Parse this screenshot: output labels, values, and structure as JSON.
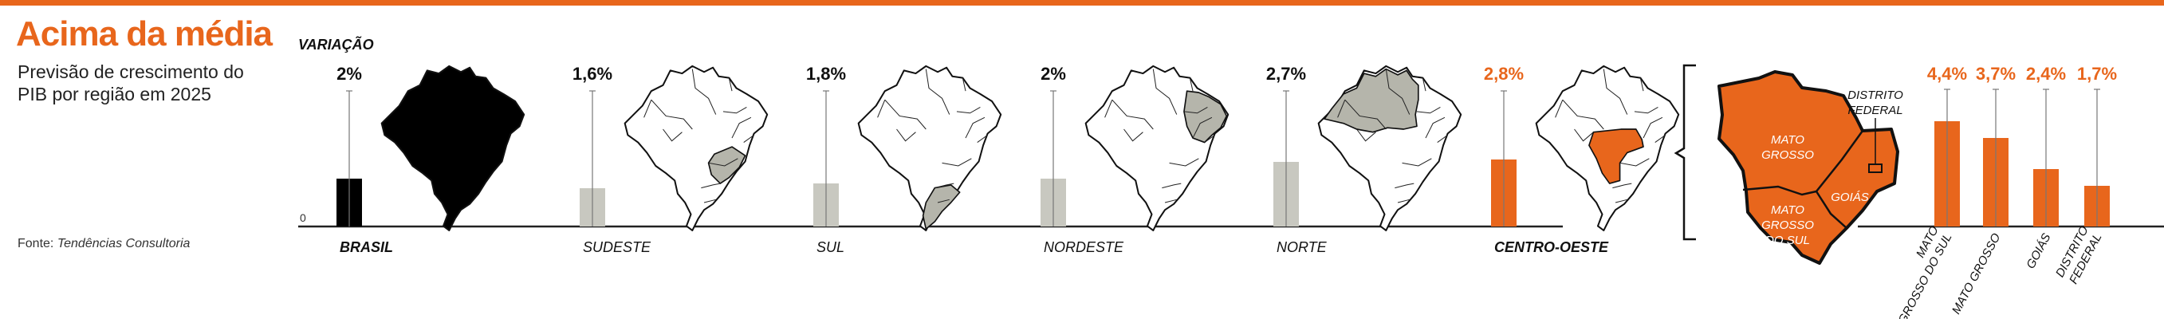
{
  "header": {
    "title": "Acima da média",
    "subtitle": "Previsão de crescimento do PIB por região em 2025",
    "source_prefix": "Fonte: ",
    "source_name": "Tendências Consultoria",
    "variation_label": "VARIAÇÃO",
    "zero_label": "0"
  },
  "colors": {
    "accent": "#E8661C",
    "brasil": "#000000",
    "regions": "#C8C8C0",
    "highlight_map": "#B5B5AB",
    "rule": "#222222"
  },
  "map_labels": {
    "distrito_federal": "DISTRITO FEDERAL",
    "mato_grosso": "MATO GROSSO",
    "mato_grosso_do_sul": "MATO GROSSO DO SUL",
    "goias": "GOIÁS"
  },
  "chart_data": [
    {
      "type": "bar",
      "title": "",
      "categories": [
        "BRASIL",
        "SUDESTE",
        "SUL",
        "NORDESTE",
        "NORTE",
        "CENTRO-OESTE"
      ],
      "values": [
        2.0,
        1.6,
        1.8,
        2.0,
        2.7,
        2.8
      ],
      "value_labels": [
        "2%",
        "1,6%",
        "1,8%",
        "2%",
        "2,7%",
        "2,8%"
      ],
      "bar_colors": [
        "brasil",
        "regions",
        "regions",
        "regions",
        "regions",
        "accent"
      ],
      "bold_categories": [
        "BRASIL",
        "CENTRO-OESTE"
      ],
      "ylim": [
        0,
        5.5
      ]
    },
    {
      "type": "bar",
      "title": "",
      "categories": [
        "MATO GROSSO DO SUL",
        "MATO GROSSO",
        "GOIÁS",
        "DISTRITO FEDERAL"
      ],
      "values": [
        4.4,
        3.7,
        2.4,
        1.7
      ],
      "value_labels": [
        "4,4%",
        "3,7%",
        "2,4%",
        "1,7%"
      ],
      "ylim": [
        0,
        5.5
      ]
    }
  ]
}
